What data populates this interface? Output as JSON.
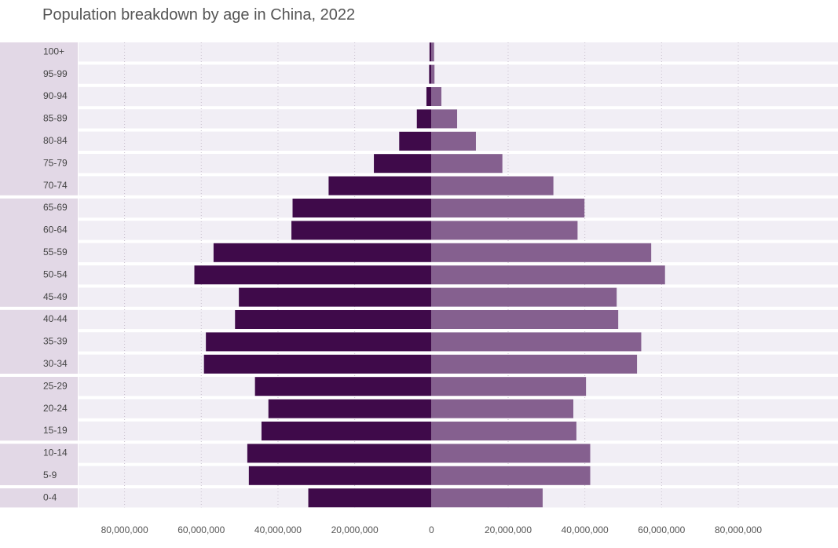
{
  "title": "Population breakdown by age in China, 2022",
  "colors": {
    "left_bar": "#3f0a4a",
    "right_bar": "#85608f",
    "row_background": "#f1eef5",
    "group_background": "#e2d8e6",
    "gridline": "#c9c0ce"
  },
  "chart_data": {
    "type": "bar",
    "orientation": "horizontal",
    "title": "Population breakdown by age in China, 2022",
    "categories": [
      "100+",
      "95-99",
      "90-94",
      "85-89",
      "80-84",
      "75-79",
      "70-74",
      "65-69",
      "60-64",
      "55-59",
      "50-54",
      "45-49",
      "40-44",
      "35-39",
      "30-34",
      "25-29",
      "20-24",
      "15-19",
      "10-14",
      "5-9",
      "0-4"
    ],
    "series": [
      {
        "side": "left",
        "values": [
          500000,
          600000,
          1300000,
          3800000,
          8400000,
          15000000,
          26800000,
          36200000,
          36500000,
          56800000,
          61800000,
          50200000,
          51200000,
          58800000,
          59300000,
          46000000,
          42500000,
          44300000,
          48000000,
          47600000,
          32100000
        ]
      },
      {
        "side": "right",
        "values": [
          700000,
          800000,
          2600000,
          6700000,
          11600000,
          18500000,
          31800000,
          39900000,
          38100000,
          57300000,
          60900000,
          48300000,
          48700000,
          54700000,
          53600000,
          40300000,
          37000000,
          37800000,
          41400000,
          41400000,
          29000000
        ]
      }
    ],
    "xticks": [
      -80000000,
      -60000000,
      -40000000,
      -20000000,
      0,
      20000000,
      40000000,
      60000000,
      80000000
    ],
    "xtick_labels": [
      "80,000,000",
      "60,000,000",
      "40,000,000",
      "20,000,000",
      "0",
      "20,000,000",
      "40,000,000",
      "60,000,000",
      "80,000,000"
    ],
    "xlim": [
      -92000000,
      106000000
    ],
    "category_groups": [
      [
        "100+",
        "95-99",
        "90-94",
        "85-89",
        "80-84",
        "75-79",
        "70-74"
      ],
      [
        "65-69",
        "60-64",
        "55-59",
        "50-54",
        "45-49"
      ],
      [
        "40-44",
        "35-39",
        "30-34"
      ],
      [
        "25-29",
        "20-24",
        "15-19"
      ],
      [
        "10-14",
        "5-9"
      ],
      [
        "0-4"
      ]
    ],
    "grid": true,
    "legend": "none"
  }
}
